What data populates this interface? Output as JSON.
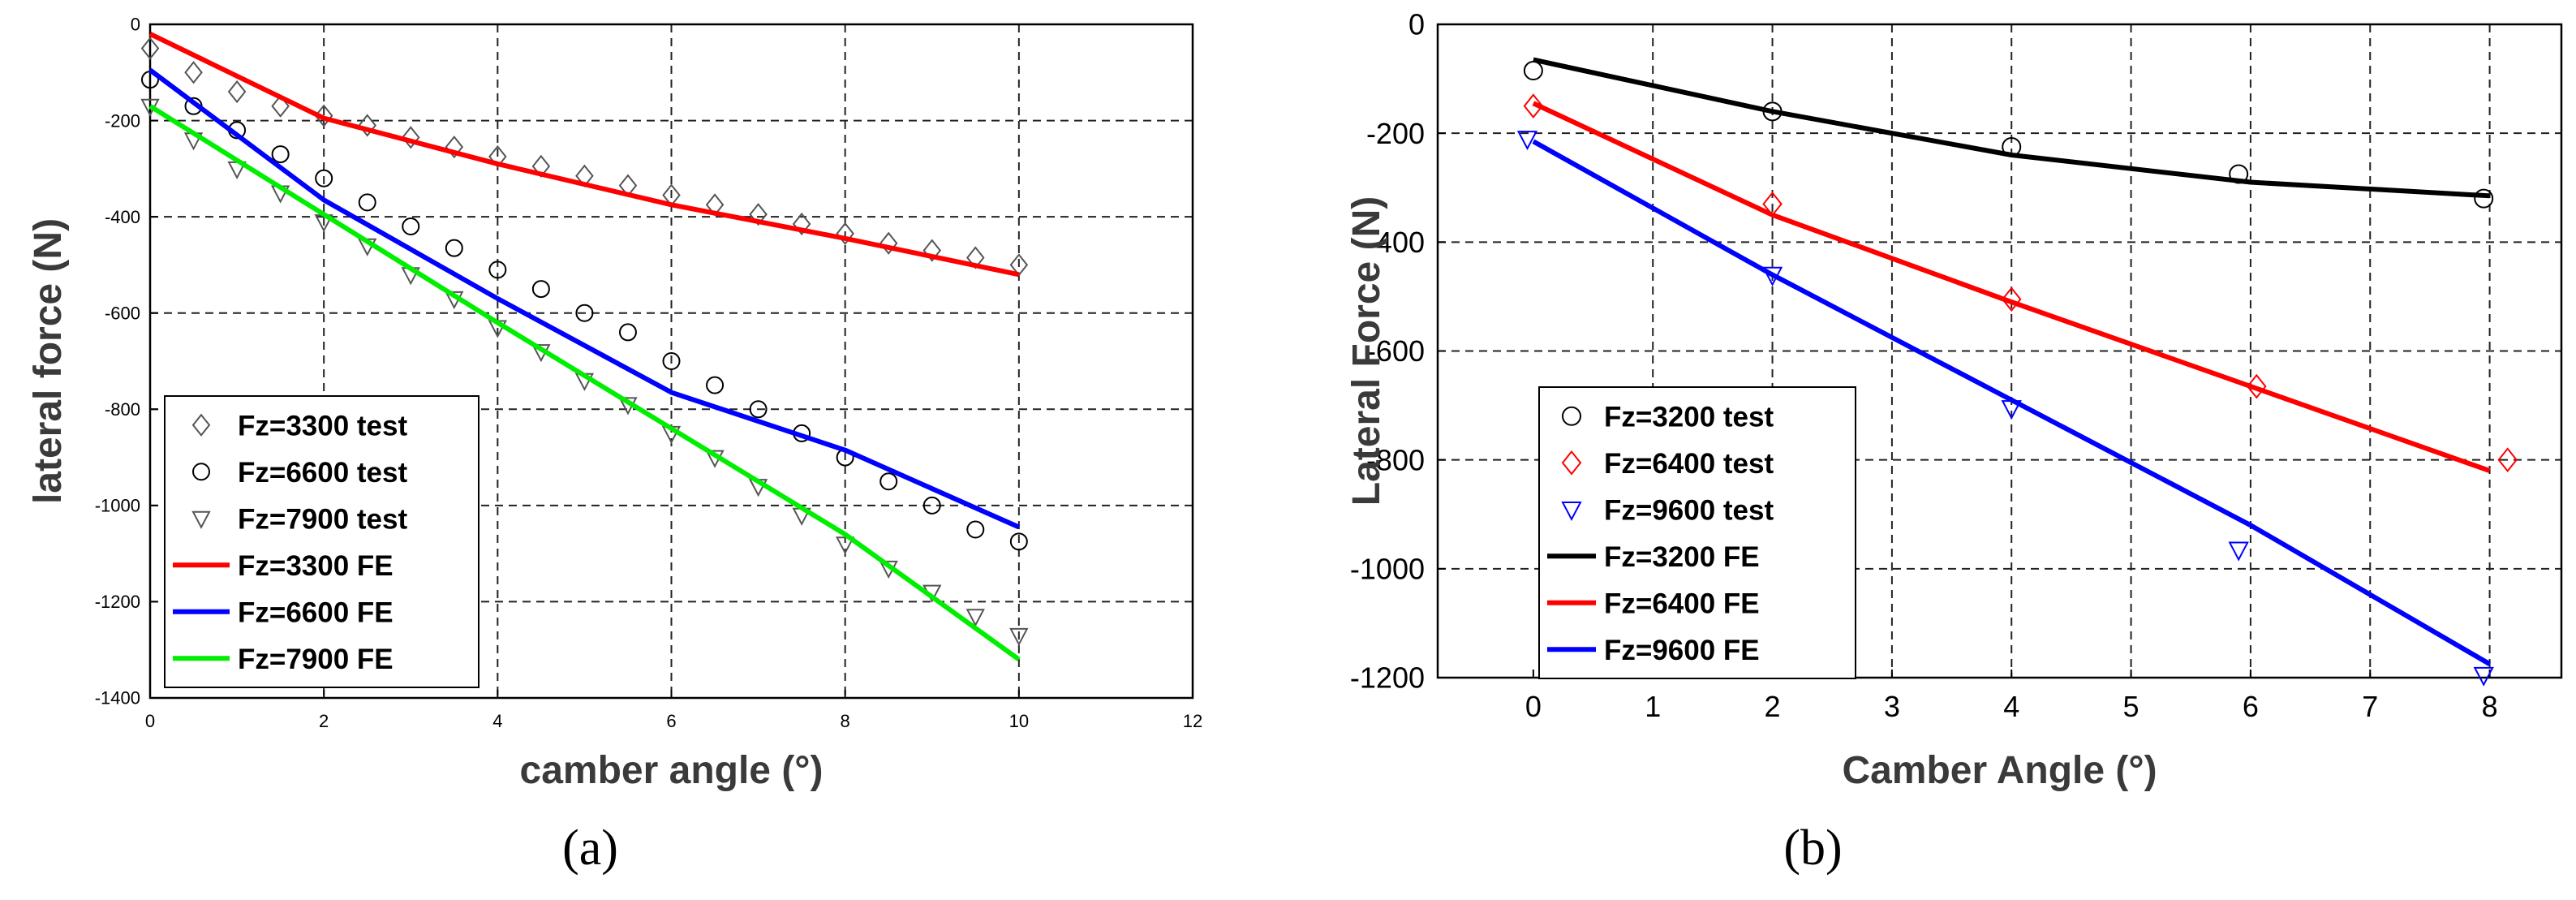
{
  "chart_data": [
    {
      "type": "line",
      "panel_label": "(a)",
      "xlabel": "camber angle (°)",
      "ylabel": "lateral force (N)",
      "xlim": [
        0,
        12
      ],
      "ylim": [
        -1400,
        0
      ],
      "xticks": [
        "0",
        "2",
        "4",
        "6",
        "8",
        "10",
        "12"
      ],
      "yticks": [
        "0",
        "-200",
        "-400",
        "-600",
        "-800",
        "-1000",
        "-1200",
        "-1400"
      ],
      "grid": true,
      "legend_position": "bottom-left",
      "series": [
        {
          "name": "Fz=3300 test",
          "kind": "scatter",
          "marker": "diamond",
          "color": "#555555",
          "x": [
            0,
            0.5,
            1,
            1.5,
            2,
            2.5,
            3,
            3.5,
            4,
            4.5,
            5,
            5.5,
            6,
            6.5,
            7,
            7.5,
            8,
            8.5,
            9,
            9.5,
            10
          ],
          "y": [
            -50,
            -100,
            -140,
            -170,
            -190,
            -210,
            -235,
            -255,
            -275,
            -295,
            -315,
            -335,
            -355,
            -375,
            -395,
            -415,
            -435,
            -455,
            -470,
            -485,
            -500
          ]
        },
        {
          "name": "Fz=6600 test",
          "kind": "scatter",
          "marker": "circle",
          "color": "#000000",
          "x": [
            0,
            0.5,
            1,
            1.5,
            2,
            2.5,
            3,
            3.5,
            4,
            4.5,
            5,
            5.5,
            6,
            6.5,
            7,
            7.5,
            8,
            8.5,
            9,
            9.5,
            10
          ],
          "y": [
            -115,
            -170,
            -220,
            -270,
            -320,
            -370,
            -420,
            -465,
            -510,
            -550,
            -600,
            -640,
            -700,
            -750,
            -800,
            -850,
            -900,
            -950,
            -1000,
            -1050,
            -1075
          ]
        },
        {
          "name": "Fz=7900 test",
          "kind": "scatter",
          "marker": "triangle-down",
          "color": "#555555",
          "x": [
            0,
            0.5,
            1,
            1.5,
            2,
            2.5,
            3,
            3.5,
            4,
            4.5,
            5,
            5.5,
            6,
            6.5,
            7,
            7.5,
            8,
            8.5,
            9,
            9.5,
            10
          ],
          "y": [
            -170,
            -240,
            -300,
            -350,
            -410,
            -460,
            -520,
            -570,
            -630,
            -680,
            -740,
            -790,
            -850,
            -900,
            -960,
            -1020,
            -1080,
            -1130,
            -1180,
            -1230,
            -1270
          ]
        },
        {
          "name": "Fz=3300 FE",
          "kind": "line",
          "color": "#ff0000",
          "x": [
            0,
            2,
            4,
            6,
            8,
            10
          ],
          "y": [
            -20,
            -195,
            -290,
            -375,
            -445,
            -520
          ]
        },
        {
          "name": "Fz=6600 FE",
          "kind": "line",
          "color": "#0000ff",
          "x": [
            0,
            2,
            4,
            6,
            8,
            10
          ],
          "y": [
            -95,
            -365,
            -570,
            -765,
            -885,
            -1045
          ]
        },
        {
          "name": "Fz=7900 FE",
          "kind": "line",
          "color": "#00ee00",
          "x": [
            0,
            2,
            4,
            6,
            8,
            10
          ],
          "y": [
            -170,
            -395,
            -620,
            -840,
            -1060,
            -1320
          ]
        }
      ]
    },
    {
      "type": "line",
      "panel_label": "(b)",
      "xlabel": "Camber Angle (°)",
      "ylabel": "Lateral Force (N)",
      "xlim": [
        -0.8,
        8.6
      ],
      "ylim": [
        -1200,
        0
      ],
      "xticks": [
        "0",
        "1",
        "2",
        "3",
        "4",
        "5",
        "6",
        "7",
        "8"
      ],
      "yticks": [
        "0",
        "-200",
        "-400",
        "-600",
        "-800",
        "-1000",
        "-1200"
      ],
      "grid": true,
      "legend_position": "bottom-left",
      "series": [
        {
          "name": "Fz=3200 test",
          "kind": "scatter",
          "marker": "circle",
          "color": "#000000",
          "x": [
            0,
            2,
            4,
            5.9,
            7.95
          ],
          "y": [
            -85,
            -160,
            -225,
            -275,
            -320
          ]
        },
        {
          "name": "Fz=6400 test",
          "kind": "scatter",
          "marker": "diamond",
          "color": "#ff0000",
          "x": [
            0,
            2,
            4,
            6.05,
            8.15
          ],
          "y": [
            -150,
            -330,
            -505,
            -665,
            -800
          ]
        },
        {
          "name": "Fz=9600 test",
          "kind": "scatter",
          "marker": "triangle-down",
          "color": "#0000ff",
          "x": [
            -0.05,
            2,
            4,
            5.9,
            7.95
          ],
          "y": [
            -210,
            -460,
            -705,
            -965,
            -1195
          ]
        },
        {
          "name": "Fz=3200 FE",
          "kind": "line",
          "color": "#000000",
          "x": [
            0,
            2,
            4,
            6,
            8
          ],
          "y": [
            -65,
            -160,
            -240,
            -290,
            -315
          ]
        },
        {
          "name": "Fz=6400 FE",
          "kind": "line",
          "color": "#ff0000",
          "x": [
            0,
            2,
            4,
            6,
            8
          ],
          "y": [
            -145,
            -350,
            -510,
            -665,
            -820
          ]
        },
        {
          "name": "Fz=9600 FE",
          "kind": "line",
          "color": "#0000ff",
          "x": [
            0,
            2,
            4,
            6,
            8
          ],
          "y": [
            -215,
            -460,
            -690,
            -920,
            -1175
          ]
        }
      ]
    }
  ]
}
